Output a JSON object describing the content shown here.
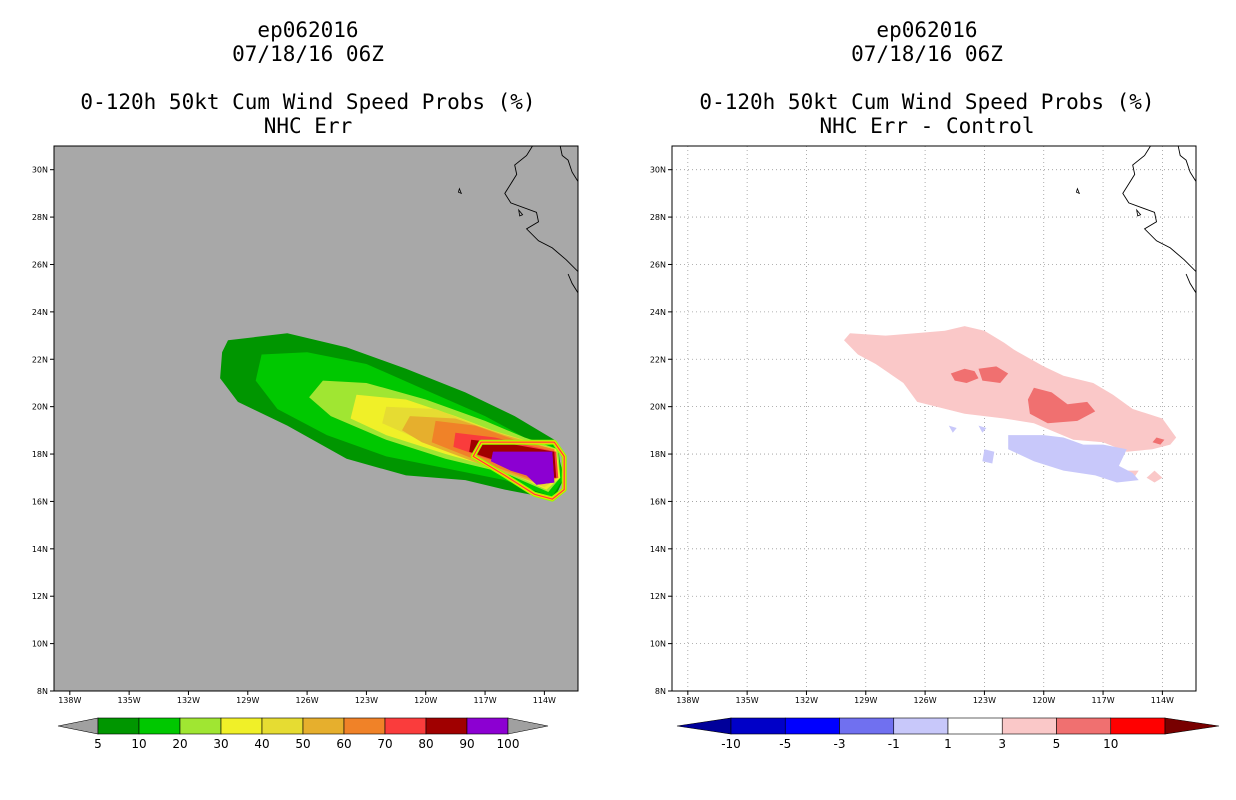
{
  "panels": [
    {
      "title_lines": [
        "ep062016",
        "07/18/16 06Z"
      ],
      "subtitle_lines": [
        "0-120h 50kt Cum Wind Speed Probs (%)",
        "NHC Err"
      ],
      "colorbar": {
        "labels": [
          "5",
          "10",
          "20",
          "30",
          "40",
          "50",
          "60",
          "70",
          "80",
          "90",
          "100"
        ],
        "colors": [
          "#009600",
          "#00c800",
          "#a0e632",
          "#f0f028",
          "#e6dc32",
          "#e6af2d",
          "#f08228",
          "#fa3c3c",
          "#a00000",
          "#8c00d2"
        ],
        "end_colors": [
          "#a0a0a0",
          "#a0a0a0"
        ]
      }
    },
    {
      "title_lines": [
        "ep062016",
        "07/18/16 06Z"
      ],
      "subtitle_lines": [
        "0-120h 50kt Cum Wind Speed Probs (%)",
        "NHC Err - Control"
      ],
      "colorbar": {
        "labels": [
          "-10",
          "-5",
          "-3",
          "-1",
          "1",
          "3",
          "5",
          "10"
        ],
        "colors": [
          "#0000c8",
          "#0000ff",
          "#7070f0",
          "#c8c8fa",
          "#ffffff",
          "#fac8c8",
          "#f07070",
          "#ff0000"
        ],
        "end_colors": [
          "#00009a",
          "#780000"
        ]
      }
    }
  ],
  "chart_data": [
    {
      "type": "filled-contour map",
      "title": "0-120h 50kt Cum Wind Speed Probs (%)",
      "subtitle": "NHC Err",
      "storm": "ep062016",
      "time": "07/18/16 06Z",
      "x_ticks": [
        "138W",
        "135W",
        "132W",
        "129W",
        "126W",
        "123W",
        "120W",
        "117W",
        "114W"
      ],
      "x_tick_values": [
        -138,
        -135,
        -132,
        -129,
        -126,
        -123,
        -120,
        -117,
        -114
      ],
      "y_ticks": [
        "8N",
        "10N",
        "12N",
        "14N",
        "16N",
        "18N",
        "20N",
        "22N",
        "24N",
        "26N",
        "28N",
        "30N"
      ],
      "y_tick_values": [
        8,
        10,
        12,
        14,
        16,
        18,
        20,
        22,
        24,
        26,
        28,
        30
      ],
      "lon_range": [
        -138.8,
        -112.3
      ],
      "lat_range": [
        8,
        31
      ],
      "background": "#a8a8a8",
      "grid": false,
      "levels": [
        5,
        10,
        20,
        30,
        40,
        50,
        60,
        70,
        80,
        90
      ],
      "contours": [
        {
          "level": 5,
          "color": "#009600",
          "points": [
            [
              -130,
              22.8
            ],
            [
              -127,
              23.1
            ],
            [
              -124,
              22.5
            ],
            [
              -121,
              21.6
            ],
            [
              -118,
              20.6
            ],
            [
              -115.5,
              19.6
            ],
            [
              -113.5,
              18.6
            ],
            [
              -113,
              17
            ],
            [
              -113.5,
              16.1
            ],
            [
              -116,
              16.5
            ],
            [
              -118,
              16.9
            ],
            [
              -121,
              17.1
            ],
            [
              -124,
              17.8
            ],
            [
              -127,
              19.2
            ],
            [
              -129.5,
              20.2
            ],
            [
              -130.4,
              21.2
            ],
            [
              -130.3,
              22.3
            ]
          ]
        },
        {
          "level": 10,
          "color": "#00c800",
          "points": [
            [
              -128.3,
              22.2
            ],
            [
              -126,
              22.3
            ],
            [
              -123,
              21.8
            ],
            [
              -120,
              20.7
            ],
            [
              -117,
              19.6
            ],
            [
              -115,
              18.7
            ],
            [
              -113.3,
              18.3
            ],
            [
              -113.1,
              16.9
            ],
            [
              -113.6,
              16.2
            ],
            [
              -116,
              16.9
            ],
            [
              -119,
              17.4
            ],
            [
              -122,
              17.9
            ],
            [
              -125,
              18.8
            ],
            [
              -127.5,
              19.9
            ],
            [
              -128.6,
              21.1
            ]
          ]
        },
        {
          "level": 20,
          "color": "#a0e632",
          "points": [
            [
              -125.2,
              21.1
            ],
            [
              -123,
              21
            ],
            [
              -120,
              20.3
            ],
            [
              -117,
              19.4
            ],
            [
              -115,
              18.7
            ],
            [
              -113.3,
              18.2
            ],
            [
              -113.2,
              17
            ],
            [
              -113.8,
              16.4
            ],
            [
              -116,
              17.2
            ],
            [
              -119,
              17.8
            ],
            [
              -122,
              18.6
            ],
            [
              -124.8,
              19.6
            ],
            [
              -125.9,
              20.4
            ]
          ]
        },
        {
          "level": 30,
          "color": "#f0f028",
          "points": [
            [
              -123.5,
              20.5
            ],
            [
              -121,
              20.3
            ],
            [
              -118.5,
              19.6
            ],
            [
              -116,
              18.8
            ],
            [
              -113.4,
              18.2
            ],
            [
              -113.2,
              17
            ],
            [
              -113.9,
              16.5
            ],
            [
              -116,
              17.3
            ],
            [
              -119,
              18
            ],
            [
              -122,
              18.8
            ],
            [
              -123.8,
              19.5
            ]
          ]
        },
        {
          "level": 40,
          "color": "#e6dc32",
          "points": [
            [
              -122,
              20
            ],
            [
              -119.5,
              19.9
            ],
            [
              -117,
              19.1
            ],
            [
              -113.5,
              18.2
            ],
            [
              -113.3,
              17
            ],
            [
              -114,
              16.6
            ],
            [
              -116.5,
              17.4
            ],
            [
              -119.5,
              18.3
            ],
            [
              -122.2,
              19.3
            ]
          ]
        },
        {
          "level": 50,
          "color": "#e6af2d",
          "points": [
            [
              -120.8,
              19.6
            ],
            [
              -118.5,
              19.5
            ],
            [
              -116,
              18.8
            ],
            [
              -113.5,
              18.2
            ],
            [
              -113.3,
              17
            ],
            [
              -114.1,
              16.7
            ],
            [
              -117,
              17.5
            ],
            [
              -120.2,
              18.5
            ],
            [
              -121.2,
              19
            ]
          ]
        },
        {
          "level": 60,
          "color": "#f08228",
          "points": [
            [
              -119.5,
              19.4
            ],
            [
              -117.5,
              19.2
            ],
            [
              -115.5,
              18.6
            ],
            [
              -113.5,
              18.2
            ],
            [
              -113.3,
              17
            ],
            [
              -114.2,
              16.8
            ],
            [
              -117,
              17.6
            ],
            [
              -119.7,
              18.5
            ]
          ]
        },
        {
          "level": 70,
          "color": "#fa3c3c",
          "points": [
            [
              -118.5,
              18.9
            ],
            [
              -116.5,
              18.7
            ],
            [
              -114.5,
              18.3
            ],
            [
              -113.4,
              18.1
            ],
            [
              -113.3,
              17
            ],
            [
              -114.3,
              16.9
            ],
            [
              -116.5,
              17.7
            ],
            [
              -118.6,
              18.3
            ]
          ]
        },
        {
          "level": 80,
          "color": "#a00000",
          "points": [
            [
              -117.7,
              18.6
            ],
            [
              -115.5,
              18.4
            ],
            [
              -113.5,
              18.1
            ],
            [
              -113.4,
              17
            ],
            [
              -114.4,
              17
            ],
            [
              -116,
              17.6
            ],
            [
              -117.8,
              18.1
            ]
          ]
        },
        {
          "level": 90,
          "color": "#8c00d2",
          "points": [
            [
              -116.6,
              18.1
            ],
            [
              -113.6,
              18.1
            ],
            [
              -113.5,
              16.8
            ],
            [
              -114.4,
              16.7
            ],
            [
              -114.9,
              17.1
            ],
            [
              -115.7,
              17.3
            ],
            [
              -116.7,
              17.7
            ]
          ]
        }
      ],
      "outline_colors": [
        "#ff3c3c",
        "#ffd200",
        "#90ff00"
      ]
    },
    {
      "type": "filled-contour map",
      "title": "0-120h 50kt Cum Wind Speed Probs (%)",
      "subtitle": "NHC Err - Control",
      "storm": "ep062016",
      "time": "07/18/16 06Z",
      "x_ticks": [
        "138W",
        "135W",
        "132W",
        "129W",
        "126W",
        "123W",
        "120W",
        "117W",
        "114W"
      ],
      "x_tick_values": [
        -138,
        -135,
        -132,
        -129,
        -126,
        -123,
        -120,
        -117,
        -114
      ],
      "y_ticks": [
        "8N",
        "10N",
        "12N",
        "14N",
        "16N",
        "18N",
        "20N",
        "22N",
        "24N",
        "26N",
        "28N",
        "30N"
      ],
      "y_tick_values": [
        8,
        10,
        12,
        14,
        16,
        18,
        20,
        22,
        24,
        26,
        28,
        30
      ],
      "lon_range": [
        -138.8,
        -112.3
      ],
      "lat_range": [
        8,
        31
      ],
      "background": "#ffffff",
      "grid": true,
      "levels": [
        -10,
        -5,
        -3,
        -1,
        1,
        3,
        5,
        10
      ],
      "contours": [
        {
          "level": 1,
          "color": "#fac8c8",
          "points": [
            [
              -129.8,
              23.1
            ],
            [
              -128,
              23
            ],
            [
              -126.5,
              23.1
            ],
            [
              -125,
              23.2
            ],
            [
              -124,
              23.4
            ],
            [
              -123,
              23.2
            ],
            [
              -122,
              22.7
            ],
            [
              -121.5,
              22.4
            ],
            [
              -120,
              21.7
            ],
            [
              -119,
              21.3
            ],
            [
              -117.5,
              21
            ],
            [
              -116.5,
              20.5
            ],
            [
              -115.5,
              19.9
            ],
            [
              -114,
              19.5
            ],
            [
              -113.3,
              18.7
            ],
            [
              -113.6,
              18.4
            ],
            [
              -114.5,
              18.2
            ],
            [
              -115.8,
              18.1
            ],
            [
              -117,
              18.5
            ],
            [
              -118.5,
              18.6
            ],
            [
              -120.5,
              19.3
            ],
            [
              -122,
              19.5
            ],
            [
              -124,
              19.7
            ],
            [
              -126.4,
              20.2
            ],
            [
              -127.1,
              21
            ],
            [
              -128.5,
              21.8
            ],
            [
              -129.4,
              22.2
            ],
            [
              -130.1,
              22.8
            ]
          ]
        },
        {
          "level": 3,
          "color": "#f07070",
          "points": [
            [
              -124.7,
              21.4
            ],
            [
              -124,
              21.6
            ],
            [
              -123.5,
              21.5
            ],
            [
              -123.3,
              21.2
            ],
            [
              -123.9,
              21
            ],
            [
              -124.5,
              21.1
            ]
          ]
        },
        {
          "level": 3,
          "color": "#f07070",
          "points": [
            [
              -123.3,
              21.6
            ],
            [
              -122.4,
              21.7
            ],
            [
              -121.8,
              21.4
            ],
            [
              -122.2,
              21
            ],
            [
              -123.1,
              21.1
            ]
          ]
        },
        {
          "level": 3,
          "color": "#f07070",
          "points": [
            [
              -120.5,
              20.8
            ],
            [
              -119.6,
              20.6
            ],
            [
              -118.8,
              20.1
            ],
            [
              -117.8,
              20.2
            ],
            [
              -117.4,
              19.8
            ],
            [
              -118.3,
              19.4
            ],
            [
              -119.8,
              19.3
            ],
            [
              -120.7,
              19.7
            ],
            [
              -120.8,
              20.3
            ]
          ]
        },
        {
          "level": 3,
          "color": "#f07070",
          "points": [
            [
              -114.3,
              18.7
            ],
            [
              -113.9,
              18.6
            ],
            [
              -114.1,
              18.4
            ],
            [
              -114.5,
              18.5
            ]
          ]
        },
        {
          "level": 1,
          "color": "#fac8c8",
          "points": [
            [
              -114.4,
              17.3
            ],
            [
              -114,
              17
            ],
            [
              -114.4,
              16.8
            ],
            [
              -114.8,
              17
            ]
          ]
        },
        {
          "level": 1,
          "color": "#fac8c8",
          "points": [
            [
              -115.8,
              17.3
            ],
            [
              -115.2,
              17.3
            ],
            [
              -115.4,
              17.05
            ]
          ]
        },
        {
          "level": -1,
          "color": "#c8c8fa",
          "points": [
            [
              -121.8,
              18.8
            ],
            [
              -120,
              18.8
            ],
            [
              -119,
              18.7
            ],
            [
              -118,
              18.4
            ],
            [
              -117,
              18.4
            ],
            [
              -115.8,
              18.2
            ],
            [
              -116.2,
              17.5
            ],
            [
              -115.5,
              17.2
            ],
            [
              -115.2,
              16.9
            ],
            [
              -116.3,
              16.8
            ],
            [
              -117.4,
              17.1
            ],
            [
              -119,
              17.3
            ],
            [
              -120.5,
              17.7
            ],
            [
              -121.8,
              18.2
            ]
          ]
        },
        {
          "level": -1,
          "color": "#c8c8fa",
          "points": [
            [
              -123,
              18.2
            ],
            [
              -122.5,
              18.1
            ],
            [
              -122.6,
              17.6
            ],
            [
              -123.1,
              17.7
            ]
          ]
        },
        {
          "level": -1,
          "color": "#c8c8fa",
          "points": [
            [
              -124.8,
              19.2
            ],
            [
              -124.4,
              19.1
            ],
            [
              -124.6,
              18.9
            ]
          ]
        },
        {
          "level": -1,
          "color": "#c8c8fa",
          "points": [
            [
              -123.3,
              19.2
            ],
            [
              -122.9,
              19.1
            ],
            [
              -123.1,
              18.9
            ]
          ]
        }
      ]
    }
  ]
}
